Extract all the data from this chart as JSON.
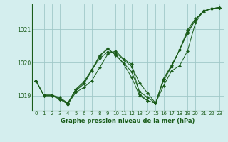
{
  "title": "Graphe pression niveau de la mer (hPa)",
  "background_color": "#d4eeee",
  "grid_color": "#a0c8c8",
  "line_color": "#1a5c1a",
  "marker_color": "#1a5c1a",
  "xlim": [
    -0.5,
    23.5
  ],
  "ylim": [
    1018.55,
    1021.75
  ],
  "yticks": [
    1019,
    1020,
    1021
  ],
  "xticks": [
    0,
    1,
    2,
    3,
    4,
    5,
    6,
    7,
    8,
    9,
    10,
    11,
    12,
    13,
    14,
    15,
    16,
    17,
    18,
    19,
    20,
    21,
    22,
    23
  ],
  "series": [
    [
      1019.45,
      1019.0,
      1019.0,
      1018.9,
      1018.75,
      1019.1,
      1019.25,
      1019.45,
      1019.85,
      1020.25,
      1020.35,
      1020.1,
      1019.95,
      1019.05,
      1018.85,
      1018.78,
      1019.3,
      1019.75,
      1019.9,
      1020.35,
      1021.2,
      1021.55,
      1021.62,
      1021.65
    ],
    [
      1019.45,
      1019.0,
      1019.0,
      1018.9,
      1018.75,
      1019.15,
      1019.35,
      1019.75,
      1020.2,
      1020.4,
      1020.25,
      1019.95,
      1019.55,
      1019.0,
      1018.85,
      1018.78,
      1019.45,
      1019.88,
      1020.38,
      1020.92,
      1021.28,
      1021.55,
      1021.62,
      1021.65
    ],
    [
      1019.45,
      1019.02,
      1019.02,
      1018.92,
      1018.78,
      1019.18,
      1019.38,
      1019.78,
      1020.12,
      1020.32,
      1020.3,
      1020.08,
      1019.88,
      1019.38,
      1019.08,
      1018.78,
      1019.52,
      1019.88,
      1020.38,
      1020.88,
      1021.28,
      1021.55,
      1021.62,
      1021.65
    ],
    [
      1019.45,
      1019.02,
      1019.02,
      1018.95,
      1018.78,
      1019.2,
      1019.42,
      1019.78,
      1020.22,
      1020.42,
      1020.22,
      1019.98,
      1019.72,
      1019.12,
      1018.95,
      1018.78,
      1019.52,
      1019.92,
      1020.38,
      1020.98,
      1021.32,
      1021.52,
      1021.62,
      1021.65
    ]
  ]
}
